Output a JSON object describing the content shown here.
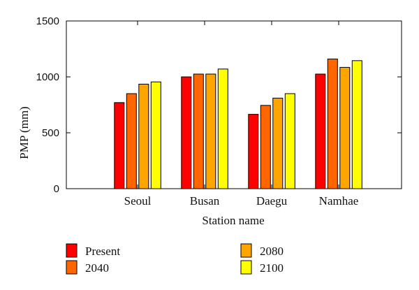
{
  "chart_data": {
    "type": "bar",
    "xlabel": "Station name",
    "ylabel": "PMP (mm)",
    "ylim": [
      0,
      1500
    ],
    "yticks": [
      0,
      500,
      1000,
      1500
    ],
    "categories": [
      "Seoul",
      "Busan",
      "Daegu",
      "Namhae"
    ],
    "series": [
      {
        "name": "Present",
        "color": "#ff0000",
        "values": [
          770,
          1000,
          665,
          1025
        ]
      },
      {
        "name": "2040",
        "color": "#ff6600",
        "values": [
          850,
          1025,
          745,
          1160
        ]
      },
      {
        "name": "2080",
        "color": "#ffa500",
        "values": [
          935,
          1025,
          810,
          1085
        ]
      },
      {
        "name": "2100",
        "color": "#ffff00",
        "values": [
          955,
          1070,
          850,
          1145
        ]
      }
    ],
    "grid": false,
    "legend_position": "bottom"
  }
}
